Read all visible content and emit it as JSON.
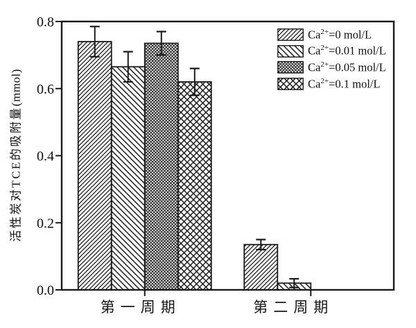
{
  "colors": {
    "ink": "#1a1a1a",
    "text": "#111111",
    "background": "#ffffff"
  },
  "chart_data": {
    "type": "bar",
    "title": "",
    "xlabel": "",
    "ylabel_main": "活性炭对TCE的吸附量",
    "ylabel_unit": "(mmol)",
    "ylim": [
      0.0,
      0.8
    ],
    "grid": false,
    "frame": "full-box",
    "error_bars": true,
    "yticks": [
      {
        "value": 0.0,
        "label": "0.0"
      },
      {
        "value": 0.2,
        "label": "0.2"
      },
      {
        "value": 0.4,
        "label": "0.4"
      },
      {
        "value": 0.6,
        "label": "0.6"
      },
      {
        "value": 0.8,
        "label": "0.8"
      }
    ],
    "categories": [
      "第一周期",
      "第二周期"
    ],
    "series": [
      {
        "name": "Ca2+=0 mol/L",
        "pattern": "diagonal-forward",
        "values": [
          0.74,
          0.135
        ],
        "errors": [
          0.045,
          0.015
        ]
      },
      {
        "name": "Ca2+=0.01 mol/L",
        "pattern": "diagonal-backward",
        "values": [
          0.665,
          0.02
        ],
        "errors": [
          0.045,
          0.013
        ]
      },
      {
        "name": "Ca2+=0.05 mol/L",
        "pattern": "dense-crosshatch",
        "values": [
          0.735,
          0.0
        ],
        "errors": [
          0.035,
          0.0
        ]
      },
      {
        "name": "Ca2+=0.1 mol/L",
        "pattern": "wide-crosshatch",
        "values": [
          0.62,
          0.0
        ],
        "errors": [
          0.04,
          0.0
        ]
      }
    ],
    "legend": {
      "position": "inside-top-right",
      "items": [
        {
          "base": "Ca",
          "sup": "2+",
          "rest": "=0 mol/L",
          "pattern": "diagonal-forward"
        },
        {
          "base": "Ca",
          "sup": "2+",
          "rest": "=0.01 mol/L",
          "pattern": "diagonal-backward"
        },
        {
          "base": "Ca",
          "sup": "2+",
          "rest": "=0.05 mol/L",
          "pattern": "dense-crosshatch"
        },
        {
          "base": "Ca",
          "sup": "2+",
          "rest": "=0.1 mol/L",
          "pattern": "wide-crosshatch"
        }
      ]
    }
  }
}
